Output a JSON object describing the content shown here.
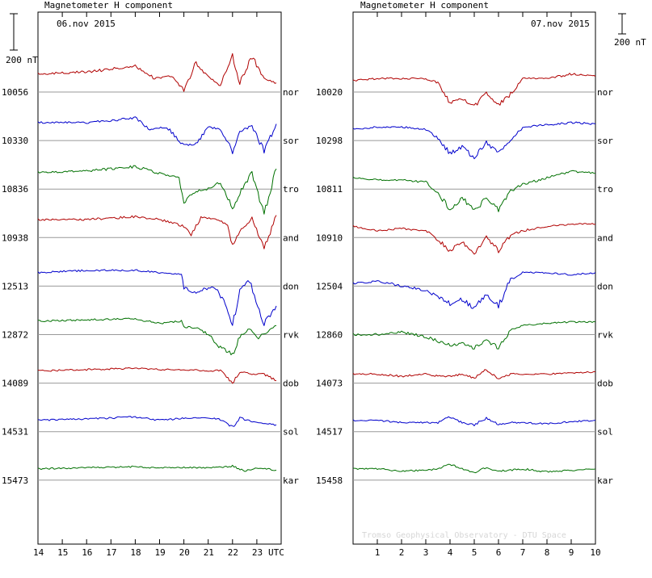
{
  "scale_bar_label": "200 nT",
  "credit": "Tromso Geophysical Observatory - DTU Space",
  "colors": {
    "red": "#b00000",
    "blue": "#0000cc",
    "green": "#007000"
  },
  "chart_data": [
    {
      "type": "line",
      "title": "Magnetometer H component",
      "date": "06.nov 2015",
      "xlabel": "UTC",
      "x_ticks": [
        "14",
        "15",
        "16",
        "17",
        "18",
        "19",
        "20",
        "21",
        "22",
        "23",
        "UTC"
      ],
      "x_range_hours": [
        14,
        24
      ],
      "stations": [
        {
          "name": "nor",
          "baseline": "10056",
          "color": "red",
          "points": [
            [
              14,
              -15
            ],
            [
              16,
              -20
            ],
            [
              18,
              -32
            ],
            [
              18.8,
              -5
            ],
            [
              19.5,
              -10
            ],
            [
              20,
              20
            ],
            [
              20.5,
              -40
            ],
            [
              21,
              -10
            ],
            [
              21.5,
              10
            ],
            [
              22,
              -55
            ],
            [
              22.3,
              5
            ],
            [
              22.8,
              -55
            ],
            [
              23.3,
              -5
            ],
            [
              23.8,
              5
            ]
          ]
        },
        {
          "name": "sor",
          "baseline": "10330",
          "color": "blue",
          "points": [
            [
              14,
              -15
            ],
            [
              16,
              -15
            ],
            [
              18,
              -25
            ],
            [
              18.6,
              0
            ],
            [
              19.3,
              -5
            ],
            [
              20,
              35
            ],
            [
              20.5,
              35
            ],
            [
              21,
              -5
            ],
            [
              21.5,
              0
            ],
            [
              22,
              50
            ],
            [
              22.3,
              5
            ],
            [
              22.8,
              -8
            ],
            [
              23.3,
              50
            ],
            [
              23.8,
              -12
            ]
          ]
        },
        {
          "name": "tro",
          "baseline": "10836",
          "color": "green",
          "points": [
            [
              14,
              -12
            ],
            [
              16,
              -15
            ],
            [
              18,
              -25
            ],
            [
              19,
              -10
            ],
            [
              19.8,
              0
            ],
            [
              20,
              55
            ],
            [
              20.5,
              30
            ],
            [
              21,
              25
            ],
            [
              21.5,
              10
            ],
            [
              22,
              70
            ],
            [
              22.3,
              35
            ],
            [
              22.8,
              -12
            ],
            [
              23.3,
              80
            ],
            [
              23.8,
              -20
            ]
          ]
        },
        {
          "name": "and",
          "baseline": "10938",
          "color": "red",
          "points": [
            [
              14,
              -15
            ],
            [
              16,
              -15
            ],
            [
              18,
              -22
            ],
            [
              19,
              -15
            ],
            [
              20,
              0
            ],
            [
              20.3,
              20
            ],
            [
              20.7,
              -20
            ],
            [
              21.3,
              -15
            ],
            [
              21.8,
              -5
            ],
            [
              22,
              45
            ],
            [
              22.3,
              10
            ],
            [
              22.8,
              -15
            ],
            [
              23.3,
              50
            ],
            [
              23.8,
              -25
            ]
          ]
        },
        {
          "name": "don",
          "baseline": "12513",
          "color": "blue",
          "points": [
            [
              14,
              -5
            ],
            [
              16,
              -10
            ],
            [
              18,
              -10
            ],
            [
              19,
              -5
            ],
            [
              19.9,
              -2
            ],
            [
              20,
              30
            ],
            [
              20.5,
              40
            ],
            [
              21.2,
              25
            ],
            [
              21.7,
              60
            ],
            [
              22,
              115
            ],
            [
              22.3,
              35
            ],
            [
              22.7,
              10
            ],
            [
              23.3,
              110
            ],
            [
              23.8,
              70
            ]
          ]
        },
        {
          "name": "rvk",
          "baseline": "12872",
          "color": "green",
          "points": [
            [
              14,
              -5
            ],
            [
              16,
              -8
            ],
            [
              18,
              -10
            ],
            [
              19,
              0
            ],
            [
              19.9,
              -5
            ],
            [
              20,
              8
            ],
            [
              20.5,
              10
            ],
            [
              21,
              25
            ],
            [
              21.5,
              55
            ],
            [
              22,
              70
            ],
            [
              22.3,
              30
            ],
            [
              22.7,
              10
            ],
            [
              23,
              35
            ],
            [
              23.4,
              20
            ],
            [
              23.8,
              5
            ]
          ]
        },
        {
          "name": "dob",
          "baseline": "14089",
          "color": "red",
          "points": [
            [
              14,
              -2
            ],
            [
              16,
              -5
            ],
            [
              18,
              -8
            ],
            [
              19,
              -5
            ],
            [
              20,
              -5
            ],
            [
              21,
              -2
            ],
            [
              21.5,
              -3
            ],
            [
              22,
              25
            ],
            [
              22.3,
              0
            ],
            [
              22.8,
              5
            ],
            [
              23.3,
              5
            ],
            [
              23.8,
              20
            ]
          ]
        },
        {
          "name": "sol",
          "baseline": "14531",
          "color": "blue",
          "points": [
            [
              14,
              0
            ],
            [
              16,
              -3
            ],
            [
              18,
              -8
            ],
            [
              19,
              0
            ],
            [
              20,
              -5
            ],
            [
              21,
              -5
            ],
            [
              21.5,
              -2
            ],
            [
              22,
              15
            ],
            [
              22.3,
              -5
            ],
            [
              23,
              5
            ],
            [
              23.8,
              10
            ]
          ]
        },
        {
          "name": "kar",
          "baseline": "15473",
          "color": "green",
          "points": [
            [
              14,
              0
            ],
            [
              16,
              -3
            ],
            [
              18,
              -5
            ],
            [
              19,
              -2
            ],
            [
              20,
              -3
            ],
            [
              21,
              -2
            ],
            [
              22,
              -6
            ],
            [
              22.5,
              5
            ],
            [
              23,
              -3
            ],
            [
              23.8,
              3
            ]
          ]
        }
      ]
    },
    {
      "type": "line",
      "title": "Magnetometer H component",
      "date": "07.nov 2015",
      "xlabel": "",
      "x_ticks": [
        "1",
        "2",
        "3",
        "4",
        "5",
        "6",
        "7",
        "8",
        "9",
        "10"
      ],
      "x_range_hours": [
        0,
        10
      ],
      "stations": [
        {
          "name": "nor",
          "baseline": "10020",
          "color": "red",
          "points": [
            [
              0,
              0
            ],
            [
              1,
              -5
            ],
            [
              2,
              -5
            ],
            [
              3,
              -5
            ],
            [
              3.5,
              5
            ],
            [
              4,
              50
            ],
            [
              4.5,
              40
            ],
            [
              5,
              60
            ],
            [
              5.5,
              25
            ],
            [
              6,
              55
            ],
            [
              6.5,
              30
            ],
            [
              7,
              -5
            ],
            [
              8,
              -5
            ],
            [
              9,
              -15
            ],
            [
              10,
              -10
            ]
          ]
        },
        {
          "name": "sor",
          "baseline": "10298",
          "color": "blue",
          "points": [
            [
              0,
              0
            ],
            [
              1,
              -5
            ],
            [
              2,
              -5
            ],
            [
              3,
              0
            ],
            [
              3.5,
              20
            ],
            [
              4,
              55
            ],
            [
              4.5,
              40
            ],
            [
              5,
              65
            ],
            [
              5.5,
              30
            ],
            [
              6,
              55
            ],
            [
              6.5,
              25
            ],
            [
              7,
              -5
            ],
            [
              8,
              -10
            ],
            [
              9,
              -15
            ],
            [
              10,
              -12
            ]
          ]
        },
        {
          "name": "tro",
          "baseline": "10811",
          "color": "green",
          "points": [
            [
              0,
              0
            ],
            [
              1,
              5
            ],
            [
              2,
              5
            ],
            [
              3,
              10
            ],
            [
              3.5,
              35
            ],
            [
              4,
              70
            ],
            [
              4.5,
              45
            ],
            [
              5,
              75
            ],
            [
              5.5,
              45
            ],
            [
              6,
              70
            ],
            [
              6.5,
              30
            ],
            [
              7,
              15
            ],
            [
              8,
              0
            ],
            [
              9,
              -15
            ],
            [
              10,
              -10
            ]
          ]
        },
        {
          "name": "and",
          "baseline": "10910",
          "color": "red",
          "points": [
            [
              0,
              0
            ],
            [
              1,
              10
            ],
            [
              2,
              5
            ],
            [
              3,
              10
            ],
            [
              3.5,
              30
            ],
            [
              4,
              55
            ],
            [
              4.5,
              35
            ],
            [
              5,
              60
            ],
            [
              5.5,
              25
            ],
            [
              6,
              55
            ],
            [
              6.5,
              20
            ],
            [
              7,
              10
            ],
            [
              8,
              0
            ],
            [
              9,
              -5
            ],
            [
              10,
              -5
            ]
          ]
        },
        {
          "name": "don",
          "baseline": "12504",
          "color": "blue",
          "points": [
            [
              0,
              20
            ],
            [
              1,
              15
            ],
            [
              2,
              25
            ],
            [
              3,
              35
            ],
            [
              3.5,
              50
            ],
            [
              4,
              65
            ],
            [
              4.5,
              55
            ],
            [
              5,
              75
            ],
            [
              5.5,
              45
            ],
            [
              6,
              70
            ],
            [
              6.5,
              10
            ],
            [
              7,
              -5
            ],
            [
              8,
              -5
            ],
            [
              9,
              0
            ],
            [
              10,
              -5
            ]
          ]
        },
        {
          "name": "rvk",
          "baseline": "12860",
          "color": "green",
          "points": [
            [
              0,
              25
            ],
            [
              1,
              25
            ],
            [
              2,
              20
            ],
            [
              3,
              30
            ],
            [
              3.5,
              40
            ],
            [
              4,
              50
            ],
            [
              4.5,
              45
            ],
            [
              5,
              55
            ],
            [
              5.5,
              40
            ],
            [
              6,
              55
            ],
            [
              6.5,
              15
            ],
            [
              7,
              5
            ],
            [
              8,
              0
            ],
            [
              9,
              -3
            ],
            [
              10,
              -3
            ]
          ]
        },
        {
          "name": "dob",
          "baseline": "14073",
          "color": "red",
          "points": [
            [
              0,
              5
            ],
            [
              1,
              5
            ],
            [
              2,
              10
            ],
            [
              3,
              5
            ],
            [
              3.5,
              10
            ],
            [
              4,
              10
            ],
            [
              4.5,
              5
            ],
            [
              5,
              15
            ],
            [
              5.5,
              -5
            ],
            [
              6,
              15
            ],
            [
              6.5,
              5
            ],
            [
              7,
              5
            ],
            [
              8,
              5
            ],
            [
              9,
              3
            ],
            [
              10,
              0
            ]
          ]
        },
        {
          "name": "sol",
          "baseline": "14517",
          "color": "blue",
          "points": [
            [
              0,
              0
            ],
            [
              1,
              0
            ],
            [
              2,
              5
            ],
            [
              3,
              5
            ],
            [
              3.5,
              5
            ],
            [
              4,
              -8
            ],
            [
              4.5,
              5
            ],
            [
              5,
              10
            ],
            [
              5.5,
              -5
            ],
            [
              6,
              10
            ],
            [
              6.5,
              5
            ],
            [
              7,
              5
            ],
            [
              8,
              8
            ],
            [
              9,
              3
            ],
            [
              10,
              0
            ]
          ]
        },
        {
          "name": "kar",
          "baseline": "15458",
          "color": "green",
          "points": [
            [
              0,
              0
            ],
            [
              1,
              0
            ],
            [
              2,
              5
            ],
            [
              3,
              3
            ],
            [
              3.5,
              0
            ],
            [
              4,
              -10
            ],
            [
              4.5,
              0
            ],
            [
              5,
              8
            ],
            [
              5.5,
              -3
            ],
            [
              6,
              5
            ],
            [
              6.5,
              3
            ],
            [
              7,
              0
            ],
            [
              8,
              7
            ],
            [
              9,
              3
            ],
            [
              10,
              0
            ]
          ]
        }
      ]
    }
  ]
}
